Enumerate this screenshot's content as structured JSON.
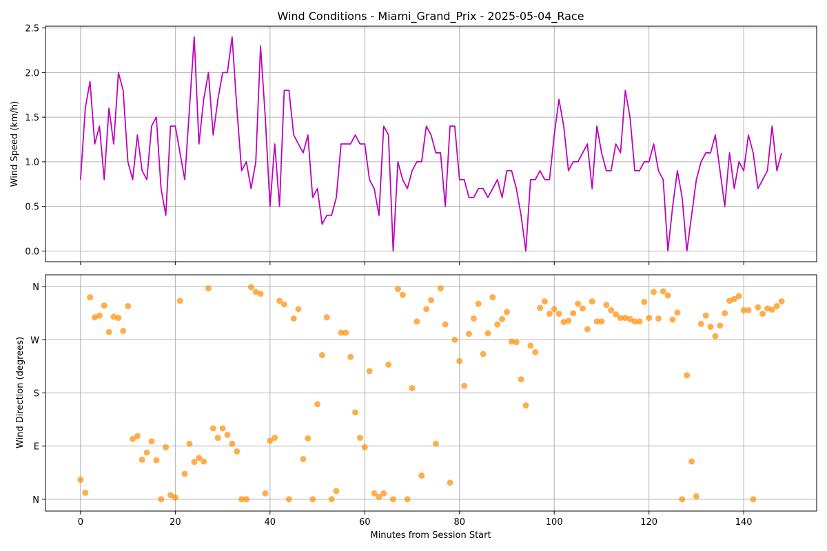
{
  "chart_data": [
    {
      "type": "line",
      "title": "Wind Conditions - Miami_Grand_Prix - 2025-05-04_Race",
      "ylabel": "Wind Speed (km/h)",
      "xlabel": "",
      "xlim": [
        -7.4,
        155.4
      ],
      "ylim": [
        -0.12,
        2.52
      ],
      "xticks": [
        0,
        20,
        40,
        60,
        80,
        100,
        120,
        140
      ],
      "xticks_labeled": false,
      "yticks": [
        0.0,
        0.5,
        1.0,
        1.5,
        2.0,
        2.5
      ],
      "ytick_labels": [
        "0.0",
        "0.5",
        "1.0",
        "1.5",
        "2.0",
        "2.5"
      ],
      "grid": true,
      "color": "#bf00bf",
      "series": [
        {
          "x": [
            0,
            1,
            2,
            3,
            4,
            5,
            6,
            7,
            8,
            9,
            10,
            11,
            12,
            13,
            14,
            15,
            16,
            17,
            18,
            19,
            20,
            21,
            22,
            23,
            24,
            25,
            26,
            27,
            28,
            29,
            30,
            31,
            32,
            33,
            34,
            35,
            36,
            37,
            38,
            39,
            40,
            41,
            42,
            43,
            44,
            45,
            46,
            47,
            48,
            49,
            50,
            51,
            52,
            53,
            54,
            55,
            56,
            57,
            58,
            59,
            60,
            61,
            62,
            63,
            64,
            65,
            66,
            67,
            68,
            69,
            70,
            71,
            72,
            73,
            74,
            75,
            76,
            77,
            78,
            79,
            80,
            81,
            82,
            83,
            84,
            85,
            86,
            87,
            88,
            89,
            90,
            91,
            92,
            93,
            94,
            95,
            96,
            97,
            98,
            99,
            100,
            101,
            102,
            103,
            104,
            105,
            106,
            107,
            108,
            109,
            110,
            111,
            112,
            113,
            114,
            115,
            116,
            117,
            118,
            119,
            120,
            121,
            122,
            123,
            124,
            125,
            126,
            127,
            128,
            129,
            130,
            131,
            132,
            133,
            134,
            135,
            136,
            137,
            138,
            139,
            140,
            141,
            142,
            143,
            144,
            145,
            146,
            147,
            148
          ],
          "values": [
            0.8,
            1.6,
            1.9,
            1.2,
            1.4,
            0.8,
            1.6,
            1.2,
            2.0,
            1.8,
            1.0,
            0.8,
            1.3,
            0.9,
            0.8,
            1.4,
            1.5,
            0.7,
            0.4,
            1.4,
            1.4,
            1.1,
            0.8,
            1.6,
            2.4,
            1.2,
            1.7,
            2.0,
            1.3,
            1.7,
            2.0,
            2.0,
            2.4,
            1.6,
            0.9,
            1.0,
            0.7,
            1.0,
            2.3,
            1.5,
            0.5,
            1.2,
            0.5,
            1.8,
            1.8,
            1.3,
            1.2,
            1.1,
            1.3,
            0.6,
            0.7,
            0.3,
            0.4,
            0.4,
            0.6,
            1.2,
            1.2,
            1.2,
            1.3,
            1.2,
            1.2,
            0.8,
            0.7,
            0.4,
            1.4,
            1.3,
            0.0,
            1.0,
            0.8,
            0.7,
            0.9,
            1.0,
            1.0,
            1.4,
            1.3,
            1.1,
            1.1,
            0.5,
            1.4,
            1.4,
            0.8,
            0.8,
            0.6,
            0.6,
            0.7,
            0.7,
            0.6,
            0.7,
            0.8,
            0.6,
            0.9,
            0.9,
            0.7,
            0.4,
            0.0,
            0.8,
            0.8,
            0.9,
            0.8,
            0.8,
            1.3,
            1.7,
            1.4,
            0.9,
            1.0,
            1.0,
            1.1,
            1.2,
            0.7,
            1.4,
            1.1,
            0.9,
            0.9,
            1.2,
            1.1,
            1.8,
            1.5,
            0.9,
            0.9,
            1.0,
            1.0,
            1.2,
            0.9,
            0.8,
            0.0,
            0.5,
            0.9,
            0.6,
            0.0,
            0.4,
            0.8,
            1.0,
            1.1,
            1.1,
            1.3,
            0.9,
            0.5,
            1.1,
            0.7,
            1.0,
            0.9,
            1.3,
            1.1,
            0.7,
            0.8,
            0.9,
            1.4,
            0.9,
            1.1
          ]
        }
      ]
    },
    {
      "type": "scatter",
      "title": "",
      "ylabel": "Wind Direction (degrees)",
      "xlabel": "Minutes from Session Start",
      "xlim": [
        -7.4,
        155.4
      ],
      "ylim": [
        -20,
        380
      ],
      "xticks": [
        0,
        20,
        40,
        60,
        80,
        100,
        120,
        140
      ],
      "xtick_labels": [
        "0",
        "20",
        "40",
        "60",
        "80",
        "100",
        "120",
        "140"
      ],
      "yticks": [
        0,
        90,
        180,
        270,
        360
      ],
      "ytick_labels": [
        "N",
        "E",
        "S",
        "W",
        "N"
      ],
      "grid": true,
      "color": "#ff8c00",
      "alpha": 0.7,
      "series": [
        {
          "x": [
            0,
            1,
            2,
            3,
            4,
            5,
            6,
            7,
            8,
            9,
            10,
            11,
            12,
            13,
            14,
            15,
            16,
            17,
            18,
            19,
            20,
            21,
            22,
            23,
            24,
            25,
            26,
            27,
            28,
            29,
            30,
            31,
            32,
            33,
            34,
            35,
            36,
            37,
            38,
            39,
            40,
            41,
            42,
            43,
            44,
            45,
            46,
            47,
            48,
            49,
            50,
            51,
            52,
            53,
            54,
            55,
            56,
            57,
            58,
            59,
            60,
            61,
            62,
            63,
            64,
            65,
            66,
            67,
            68,
            69,
            70,
            71,
            72,
            73,
            74,
            75,
            76,
            77,
            78,
            79,
            80,
            81,
            82,
            83,
            84,
            85,
            86,
            87,
            88,
            89,
            90,
            91,
            92,
            93,
            94,
            95,
            96,
            97,
            98,
            99,
            100,
            101,
            102,
            103,
            104,
            105,
            106,
            107,
            108,
            109,
            110,
            111,
            112,
            113,
            114,
            115,
            116,
            117,
            118,
            119,
            120,
            121,
            122,
            123,
            124,
            125,
            126,
            127,
            128,
            129,
            130,
            131,
            132,
            133,
            134,
            135,
            136,
            137,
            138,
            139,
            140,
            141,
            142,
            143,
            144,
            145,
            146,
            147,
            148
          ],
          "values": [
            33,
            11,
            342,
            308,
            311,
            328,
            283,
            309,
            307,
            285,
            327,
            102,
            107,
            67,
            79,
            98,
            66,
            0,
            88,
            7,
            3,
            336,
            43,
            94,
            63,
            70,
            64,
            357,
            120,
            104,
            120,
            109,
            94,
            81,
            0,
            0,
            359,
            351,
            348,
            10,
            99,
            104,
            336,
            330,
            0,
            306,
            322,
            68,
            103,
            0,
            161,
            244,
            308,
            0,
            14,
            282,
            282,
            241,
            147,
            104,
            88,
            217,
            10,
            4,
            10,
            228,
            0,
            356,
            346,
            0,
            188,
            301,
            40,
            322,
            337,
            94,
            357,
            296,
            28,
            270,
            234,
            192,
            280,
            306,
            331,
            246,
            281,
            342,
            296,
            305,
            317,
            267,
            266,
            203,
            159,
            260,
            249,
            324,
            335,
            314,
            322,
            314,
            300,
            302,
            315,
            331,
            323,
            288,
            335,
            301,
            301,
            329,
            320,
            313,
            307,
            307,
            305,
            301,
            301,
            334,
            307,
            351,
            306,
            352,
            345,
            304,
            316,
            0,
            210,
            64,
            5,
            297,
            311,
            292,
            276,
            294,
            315,
            336,
            339,
            344,
            320,
            320,
            0,
            325,
            314,
            323,
            321,
            327,
            335
          ]
        }
      ]
    }
  ]
}
